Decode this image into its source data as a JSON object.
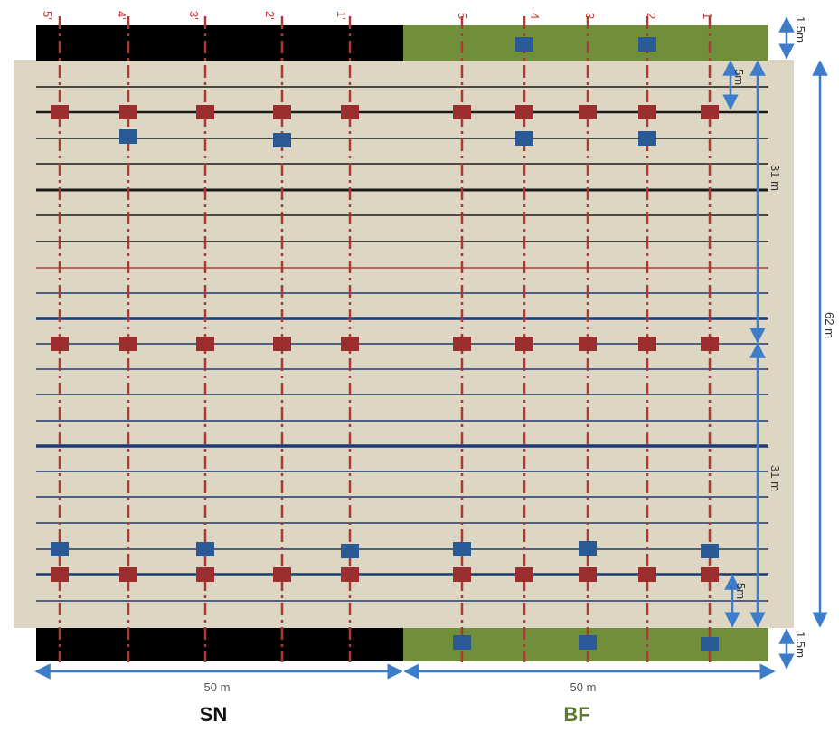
{
  "colors": {
    "field": "#dcd6c3",
    "sn_strip": "#000000",
    "bf_strip": "#718f3a",
    "transect": "#a93a36",
    "red_marker": "#9b2e2e",
    "blue_marker": "#2a5a96",
    "dark_line": "#1a1a1a",
    "blue_line": "#1e3a6e",
    "red_line": "#b04040",
    "dimension": "#3d7cc9",
    "bf_label": "#5e7a2e"
  },
  "transects": {
    "sn_labels": [
      "5'",
      "4'",
      "3'",
      "2'",
      "1'"
    ],
    "bf_labels": [
      "5",
      "4",
      "3",
      "2",
      "1"
    ]
  },
  "dimensions": {
    "strip_height": "1.5m",
    "row_offset": "5m",
    "half_length": "31 m",
    "total_length": "62 m",
    "plot_width": "50 m"
  },
  "sections": {
    "sn": "SN",
    "bf": "BF"
  }
}
